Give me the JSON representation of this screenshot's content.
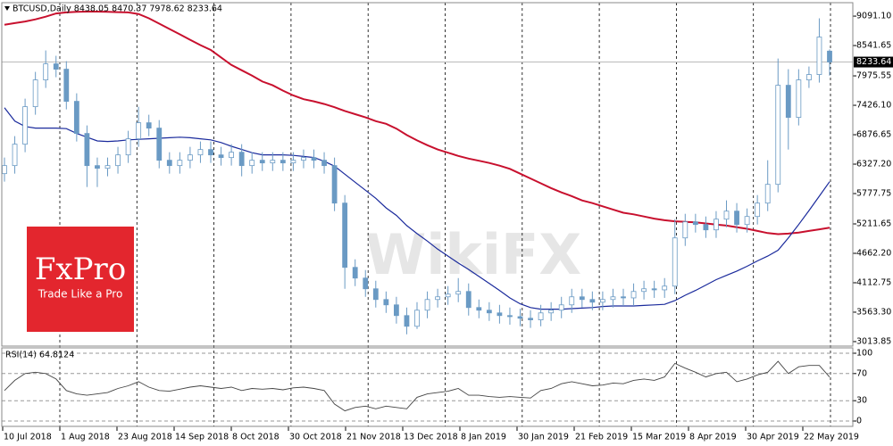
{
  "chart_data": [
    {
      "type": "candlestick",
      "title": "BTCUSD,Daily  8438.05 8470.37 7978.62 8233.64",
      "color": "#6a9ac4",
      "open": [
        6150,
        6300,
        6700,
        7400,
        7900,
        8200,
        8100,
        7500,
        6900,
        6300,
        6250,
        6300,
        6500,
        6800,
        7100,
        7000,
        6400,
        6300,
        6400,
        6500,
        6600,
        6500,
        6450,
        6550,
        6300,
        6400,
        6350,
        6400,
        6350,
        6400,
        6450,
        6400,
        6300,
        5600,
        4400,
        4200,
        4000,
        3800,
        3700,
        3500,
        3300,
        3600,
        3800,
        3850,
        3900,
        3950,
        3650,
        3600,
        3550,
        3500,
        3480,
        3450,
        3420,
        3550,
        3600,
        3700,
        3850,
        3800,
        3750,
        3800,
        3850,
        3830,
        3950,
        4000,
        3980,
        4050,
        4950,
        5250,
        5200,
        5100,
        5300,
        5450,
        5200,
        5350,
        5600,
        5950,
        7800,
        7200,
        7900,
        8000,
        8438.05
      ],
      "high": [
        6450,
        6850,
        7550,
        8050,
        8450,
        8350,
        8250,
        7650,
        7050,
        6450,
        6450,
        6650,
        6950,
        7400,
        7250,
        7150,
        6550,
        6550,
        6650,
        6750,
        6750,
        6650,
        6700,
        6700,
        6550,
        6550,
        6550,
        6550,
        6550,
        6600,
        6600,
        6550,
        6450,
        5750,
        4550,
        4350,
        4150,
        3950,
        3850,
        3650,
        3750,
        3950,
        4000,
        4050,
        4200,
        4100,
        3800,
        3750,
        3700,
        3650,
        3630,
        3600,
        3700,
        3750,
        3850,
        4000,
        4000,
        3950,
        3950,
        4000,
        4000,
        4100,
        4150,
        4150,
        4200,
        5300,
        5400,
        5400,
        5350,
        5450,
        5650,
        5600,
        5500,
        5750,
        6400,
        8300,
        8100,
        8100,
        8150,
        9050,
        8470.37
      ],
      "low": [
        6000,
        6150,
        6550,
        7250,
        7750,
        7950,
        7350,
        6750,
        5900,
        5900,
        6100,
        6150,
        6350,
        6650,
        6850,
        6250,
        6150,
        6150,
        6250,
        6350,
        6350,
        6300,
        6300,
        6100,
        6150,
        6200,
        6200,
        6200,
        6200,
        6250,
        6250,
        6150,
        5450,
        4000,
        4050,
        3850,
        3650,
        3550,
        3350,
        3150,
        3250,
        3450,
        3650,
        3700,
        3750,
        3500,
        3450,
        3400,
        3350,
        3330,
        3300,
        3270,
        3300,
        3400,
        3450,
        3550,
        3650,
        3600,
        3600,
        3650,
        3680,
        3680,
        3800,
        3830,
        3830,
        3900,
        4800,
        5050,
        4950,
        4950,
        5150,
        5050,
        5050,
        5200,
        5450,
        5800,
        6600,
        7050,
        7750,
        7850,
        7978.62
      ],
      "close": [
        6300,
        6700,
        7400,
        7900,
        8200,
        8100,
        7500,
        6900,
        6300,
        6250,
        6300,
        6500,
        6800,
        7100,
        7000,
        6400,
        6300,
        6400,
        6500,
        6600,
        6500,
        6450,
        6550,
        6300,
        6400,
        6350,
        6400,
        6350,
        6400,
        6450,
        6400,
        6300,
        5600,
        4400,
        4200,
        4000,
        3800,
        3700,
        3500,
        3300,
        3600,
        3800,
        3850,
        3900,
        3950,
        3650,
        3600,
        3550,
        3500,
        3480,
        3450,
        3420,
        3550,
        3600,
        3700,
        3850,
        3800,
        3750,
        3800,
        3850,
        3830,
        3950,
        4000,
        3980,
        4050,
        4950,
        5250,
        5200,
        5100,
        5300,
        5450,
        5200,
        5350,
        5600,
        5950,
        7800,
        7200,
        7900,
        8000,
        8700,
        8233.64
      ],
      "lines": [
        {
          "color": "#c8102e",
          "values": [
            8930,
            8960,
            8990,
            9030,
            9080,
            9140,
            9160,
            9170,
            9175,
            9175,
            9170,
            9165,
            9160,
            9130,
            9050,
            8950,
            8850,
            8750,
            8650,
            8550,
            8460,
            8320,
            8180,
            8080,
            7980,
            7870,
            7800,
            7700,
            7610,
            7540,
            7500,
            7450,
            7390,
            7320,
            7260,
            7200,
            7130,
            7080,
            6990,
            6870,
            6770,
            6680,
            6600,
            6540,
            6480,
            6430,
            6390,
            6350,
            6300,
            6240,
            6150,
            6060,
            5970,
            5880,
            5800,
            5730,
            5650,
            5600,
            5540,
            5480,
            5420,
            5390,
            5350,
            5310,
            5280,
            5260,
            5250,
            5240,
            5220,
            5200,
            5180,
            5150,
            5120,
            5080,
            5040,
            5020,
            5030,
            5050,
            5080,
            5110,
            5140
          ]
        },
        {
          "color": "#1a2a9c",
          "values": [
            7380,
            7130,
            7030,
            7000,
            7000,
            7000,
            6990,
            6900,
            6830,
            6760,
            6750,
            6760,
            6780,
            6790,
            6800,
            6810,
            6820,
            6830,
            6820,
            6800,
            6780,
            6730,
            6660,
            6600,
            6540,
            6500,
            6500,
            6500,
            6490,
            6470,
            6450,
            6380,
            6290,
            6140,
            5990,
            5840,
            5690,
            5510,
            5370,
            5180,
            5030,
            4890,
            4740,
            4610,
            4480,
            4360,
            4230,
            4100,
            3970,
            3830,
            3720,
            3650,
            3620,
            3620,
            3620,
            3630,
            3640,
            3650,
            3670,
            3680,
            3680,
            3680,
            3690,
            3700,
            3710,
            3780,
            3880,
            3970,
            4070,
            4170,
            4250,
            4330,
            4420,
            4520,
            4610,
            4720,
            4950,
            5200,
            5460,
            5730,
            6000
          ]
        }
      ],
      "last_price": 8233.64,
      "ylim": [
        2930,
        9342
      ],
      "yticks": [
        {
          "value": 9091.1,
          "label": "9091.10"
        },
        8541.65,
        7975.55,
        {
          "value": 7426.1,
          "label": "7426.10"
        },
        6876.65,
        {
          "value": 6327.2,
          "label": "6327.20"
        },
        5777.75,
        5211.65,
        {
          "value": 4662.2,
          "label": "4662.20"
        },
        4112.75,
        {
          "value": 3563.3,
          "label": "3563.30"
        },
        3013.85
      ],
      "x_labels": [
        "10 Jul 2018",
        "1 Aug 2018",
        "23 Aug 2018",
        "14 Sep 2018",
        "8 Oct 2018",
        "30 Oct 2018",
        "21 Nov 2018",
        "13 Dec 2018",
        "8 Jan 2019",
        "30 Jan 2019",
        "21 Feb 2019",
        "15 Mar 2019",
        "8 Apr 2019",
        "30 Apr 2019",
        "22 May 2019"
      ]
    },
    {
      "type": "line",
      "title": "RSI(14) 64.8124",
      "color": "#444444",
      "values": [
        45,
        60,
        70,
        72,
        70,
        62,
        45,
        40,
        38,
        40,
        42,
        48,
        52,
        58,
        50,
        45,
        44,
        47,
        50,
        52,
        50,
        48,
        50,
        45,
        48,
        47,
        48,
        46,
        49,
        50,
        48,
        45,
        25,
        15,
        20,
        22,
        18,
        22,
        20,
        18,
        35,
        40,
        42,
        44,
        48,
        38,
        38,
        36,
        35,
        36,
        35,
        34,
        45,
        48,
        55,
        58,
        55,
        52,
        53,
        56,
        55,
        60,
        62,
        60,
        65,
        85,
        78,
        72,
        65,
        70,
        72,
        58,
        62,
        68,
        72,
        88,
        70,
        80,
        82,
        82,
        64.8124
      ],
      "ylim": [
        -7.9,
        107.9
      ],
      "yticks": [
        0,
        30,
        70,
        100
      ]
    }
  ],
  "branding": {
    "logo": "FxPro",
    "tagline": "Trade Like a Pro",
    "watermark": "WikiFX"
  }
}
